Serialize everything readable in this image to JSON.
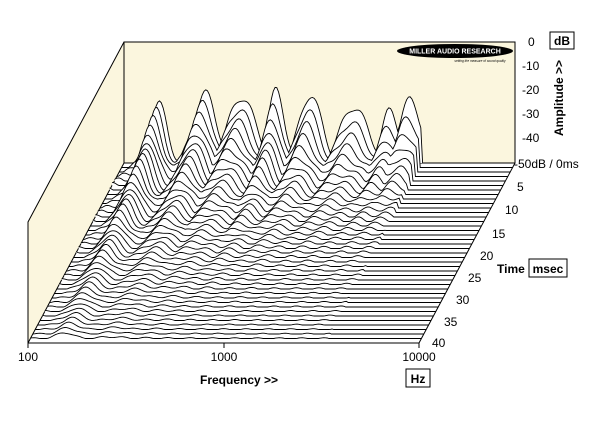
{
  "chart_data": {
    "type": "waterfall",
    "brand": {
      "name": "MILLER AUDIO RESEARCH",
      "tagline": "setting the measure of sound quality"
    },
    "x_axis": {
      "label": "Frequency >>",
      "unit": "Hz",
      "scale": "log",
      "range": [
        100,
        10000
      ],
      "ticks": [
        "100",
        "1000",
        "10000"
      ]
    },
    "amplitude_axis": {
      "label": "Amplitude >>",
      "unit": "dB",
      "range": [
        -50,
        0
      ],
      "ticks": [
        "0",
        "-10",
        "-20",
        "-30",
        "-40",
        "-50dB / 0ms"
      ]
    },
    "time_axis": {
      "label": "Time",
      "unit": "msec",
      "range": [
        0,
        40
      ],
      "ticks": [
        "5",
        "10",
        "15",
        "20",
        "25",
        "30",
        "35",
        "40"
      ]
    },
    "slices": 40,
    "initial_response_peaks": [
      {
        "freq_hz": 150,
        "level_db": -25
      },
      {
        "freq_hz": 260,
        "level_db": -21
      },
      {
        "freq_hz": 400,
        "level_db": -23
      },
      {
        "freq_hz": 600,
        "level_db": -20
      },
      {
        "freq_hz": 900,
        "level_db": -22
      },
      {
        "freq_hz": 1500,
        "level_db": -27
      },
      {
        "freq_hz": 2300,
        "level_db": -28
      },
      {
        "freq_hz": 2900,
        "level_db": -24
      }
    ],
    "colors": {
      "panel": "#fbf6de",
      "lines": "#000000",
      "fill": "#ffffff"
    }
  }
}
